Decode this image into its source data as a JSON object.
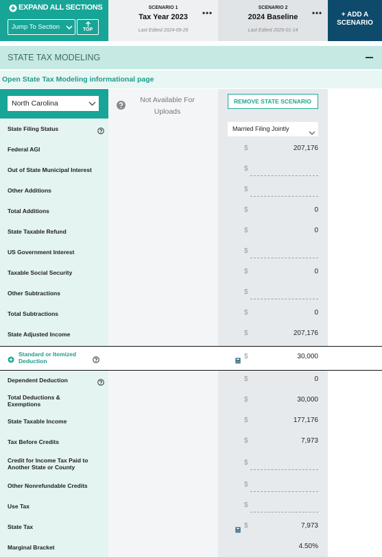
{
  "header": {
    "expand": "EXPAND ALL SECTIONS",
    "jump": "Jump To Section",
    "top": "TOP",
    "scenarios": [
      {
        "label": "SCENARIO 1",
        "name": "Tax Year 2023",
        "edited": "Last Edited 2024-09-26"
      },
      {
        "label": "SCENARIO 2",
        "name": "2024 Baseline",
        "edited": "Last Edited 2025-01-14"
      }
    ],
    "add": "+ ADD A SCENARIO"
  },
  "section": {
    "title": "STATE TAX MODELING",
    "link": "Open State Tax Modeling informational page",
    "state": "North Carolina",
    "unavailable": "Not Available For Uploads",
    "remove": "REMOVE STATE SCENARIO",
    "filing_status": "Married Filing Jointly",
    "currency": "$"
  },
  "rows": [
    {
      "label": "State Filing Status",
      "help": true
    },
    {
      "label": "Federal AGI",
      "value": "207,176",
      "dollar": true
    },
    {
      "label": "Out of State Municipal Interest",
      "value": null,
      "dollar": true
    },
    {
      "label": "Other Additions",
      "value": null,
      "dollar": true
    },
    {
      "label": "Total Additions",
      "value": "0",
      "dollar": true
    },
    {
      "label": "State Taxable Refund",
      "value": "0",
      "dollar": true
    },
    {
      "label": "US Government Interest",
      "value": null,
      "dollar": true
    },
    {
      "label": "Taxable Social Security",
      "value": "0",
      "dollar": true
    },
    {
      "label": "Other Subtractions",
      "value": null,
      "dollar": true
    },
    {
      "label": "Total Subtractions",
      "value": "0",
      "dollar": true
    },
    {
      "label": "State Adjusted Income",
      "value": "207,176",
      "dollar": true
    },
    {
      "label": "Standard or Itemized Deduction",
      "value": "30,000",
      "dollar": true,
      "help": true,
      "calc": true,
      "expandable": true
    },
    {
      "label": "Dependent Deduction",
      "value": "0",
      "dollar": true,
      "help": true
    },
    {
      "label": "Total Deductions & Exemptions",
      "value": "30,000",
      "dollar": true
    },
    {
      "label": "State Taxable Income",
      "value": "177,176",
      "dollar": true
    },
    {
      "label": "Tax Before Credits",
      "value": "7,973",
      "dollar": true
    },
    {
      "label": "Credit for Income Tax Paid to Another State or County",
      "value": null,
      "dollar": true
    },
    {
      "label": "Other Nonrefundable Credits",
      "value": null,
      "dollar": true
    },
    {
      "label": "Use Tax",
      "value": null,
      "dollar": true
    },
    {
      "label": "State Tax",
      "value": "7,973",
      "dollar": true,
      "calc": true
    },
    {
      "label": "Marginal Bracket",
      "value": "4.50%",
      "dollar": false
    }
  ]
}
